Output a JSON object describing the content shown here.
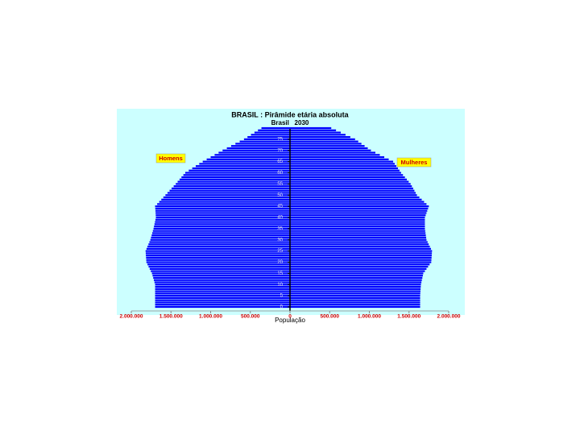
{
  "chart_data": {
    "type": "pyramid",
    "title": "BRASIL : Pirâmide etária absoluta",
    "subtitle": "Brasil   2030",
    "xlabel": "População",
    "y": [
      0,
      1,
      2,
      3,
      4,
      5,
      6,
      7,
      8,
      9,
      10,
      11,
      12,
      13,
      14,
      15,
      16,
      17,
      18,
      19,
      20,
      21,
      22,
      23,
      24,
      25,
      26,
      27,
      28,
      29,
      30,
      31,
      32,
      33,
      34,
      35,
      36,
      37,
      38,
      39,
      40,
      41,
      42,
      43,
      44,
      45,
      46,
      47,
      48,
      49,
      50,
      51,
      52,
      53,
      54,
      55,
      56,
      57,
      58,
      59,
      60,
      61,
      62,
      63,
      64,
      65,
      66,
      67,
      68,
      69,
      70,
      71,
      72,
      73,
      74,
      75,
      76,
      77,
      78,
      79,
      80
    ],
    "ylim": [
      0,
      80
    ],
    "yticks": [
      0,
      5,
      10,
      15,
      20,
      25,
      30,
      35,
      40,
      45,
      50,
      55,
      60,
      65,
      70,
      75
    ],
    "xlim": [
      -2000000,
      2000000
    ],
    "xticks": [
      {
        "value": -2000000,
        "label": "2.000.000"
      },
      {
        "value": -1500000,
        "label": "1.500.000"
      },
      {
        "value": -1000000,
        "label": "1.000.000"
      },
      {
        "value": -500000,
        "label": "500.000"
      },
      0,
      {
        "value": 500000,
        "label": "500.000"
      },
      {
        "value": 1000000,
        "label": "1.000.000"
      },
      {
        "value": 1500000,
        "label": "1.500.000"
      },
      {
        "value": 2000000,
        "label": "2.000.000"
      }
    ],
    "series": [
      {
        "name": "Homens",
        "side": "left",
        "color": "#0000ff",
        "values": [
          1700000,
          1700000,
          1700000,
          1700000,
          1700000,
          1700000,
          1700000,
          1700000,
          1700000,
          1700000,
          1700000,
          1708000,
          1716000,
          1724000,
          1732000,
          1740000,
          1754000,
          1768000,
          1782000,
          1796000,
          1810000,
          1812000,
          1814000,
          1816000,
          1818000,
          1820000,
          1808000,
          1796000,
          1784000,
          1772000,
          1760000,
          1752000,
          1744000,
          1736000,
          1728000,
          1720000,
          1714000,
          1708000,
          1702000,
          1696000,
          1690000,
          1692000,
          1694000,
          1696000,
          1698000,
          1700000,
          1674000,
          1648000,
          1622000,
          1596000,
          1570000,
          1544000,
          1518000,
          1492000,
          1466000,
          1440000,
          1416000,
          1392000,
          1368000,
          1344000,
          1320000,
          1276000,
          1232000,
          1188000,
          1144000,
          1100000,
          1050000,
          1000000,
          950000,
          900000,
          850000,
          796000,
          742000,
          688000,
          634000,
          580000,
          536000,
          492000,
          448000,
          404000,
          360000
        ]
      },
      {
        "name": "Mulheres",
        "side": "right",
        "color": "#0000ff",
        "values": [
          1640000,
          1640000,
          1640000,
          1640000,
          1640000,
          1640000,
          1642000,
          1644000,
          1646000,
          1648000,
          1650000,
          1656000,
          1662000,
          1668000,
          1674000,
          1680000,
          1700000,
          1720000,
          1740000,
          1760000,
          1780000,
          1782000,
          1784000,
          1786000,
          1788000,
          1790000,
          1776000,
          1762000,
          1748000,
          1734000,
          1720000,
          1716000,
          1712000,
          1708000,
          1704000,
          1700000,
          1700000,
          1700000,
          1700000,
          1700000,
          1700000,
          1710000,
          1720000,
          1730000,
          1740000,
          1750000,
          1720000,
          1690000,
          1660000,
          1630000,
          1600000,
          1584000,
          1568000,
          1552000,
          1536000,
          1520000,
          1496000,
          1472000,
          1448000,
          1424000,
          1400000,
          1380000,
          1360000,
          1340000,
          1320000,
          1300000,
          1244000,
          1188000,
          1132000,
          1076000,
          1020000,
          980000,
          940000,
          900000,
          860000,
          820000,
          760000,
          700000,
          640000,
          580000,
          520000
        ]
      }
    ]
  }
}
